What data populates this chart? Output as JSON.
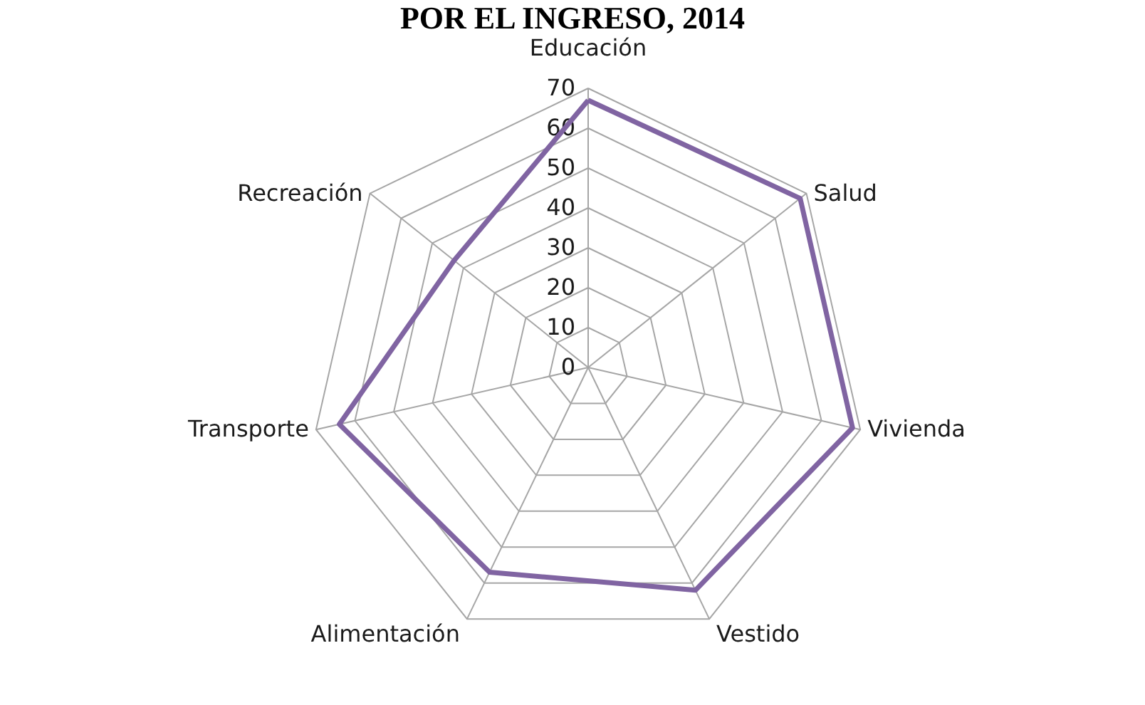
{
  "chart_data": {
    "type": "radar",
    "title": "POR EL INGRESO, 2014",
    "categories": [
      "Educación",
      "Salud",
      "Vivienda",
      "Vestido",
      "Alimentación",
      "Transporte",
      "Recreación"
    ],
    "series": [
      {
        "color": "#8064a2",
        "values": [
          67,
          68,
          68,
          62,
          57,
          64,
          43
        ]
      }
    ],
    "ylim": [
      0,
      70
    ],
    "yticks": [
      0,
      10,
      20,
      30,
      40,
      50,
      60,
      70
    ],
    "grid": true
  }
}
